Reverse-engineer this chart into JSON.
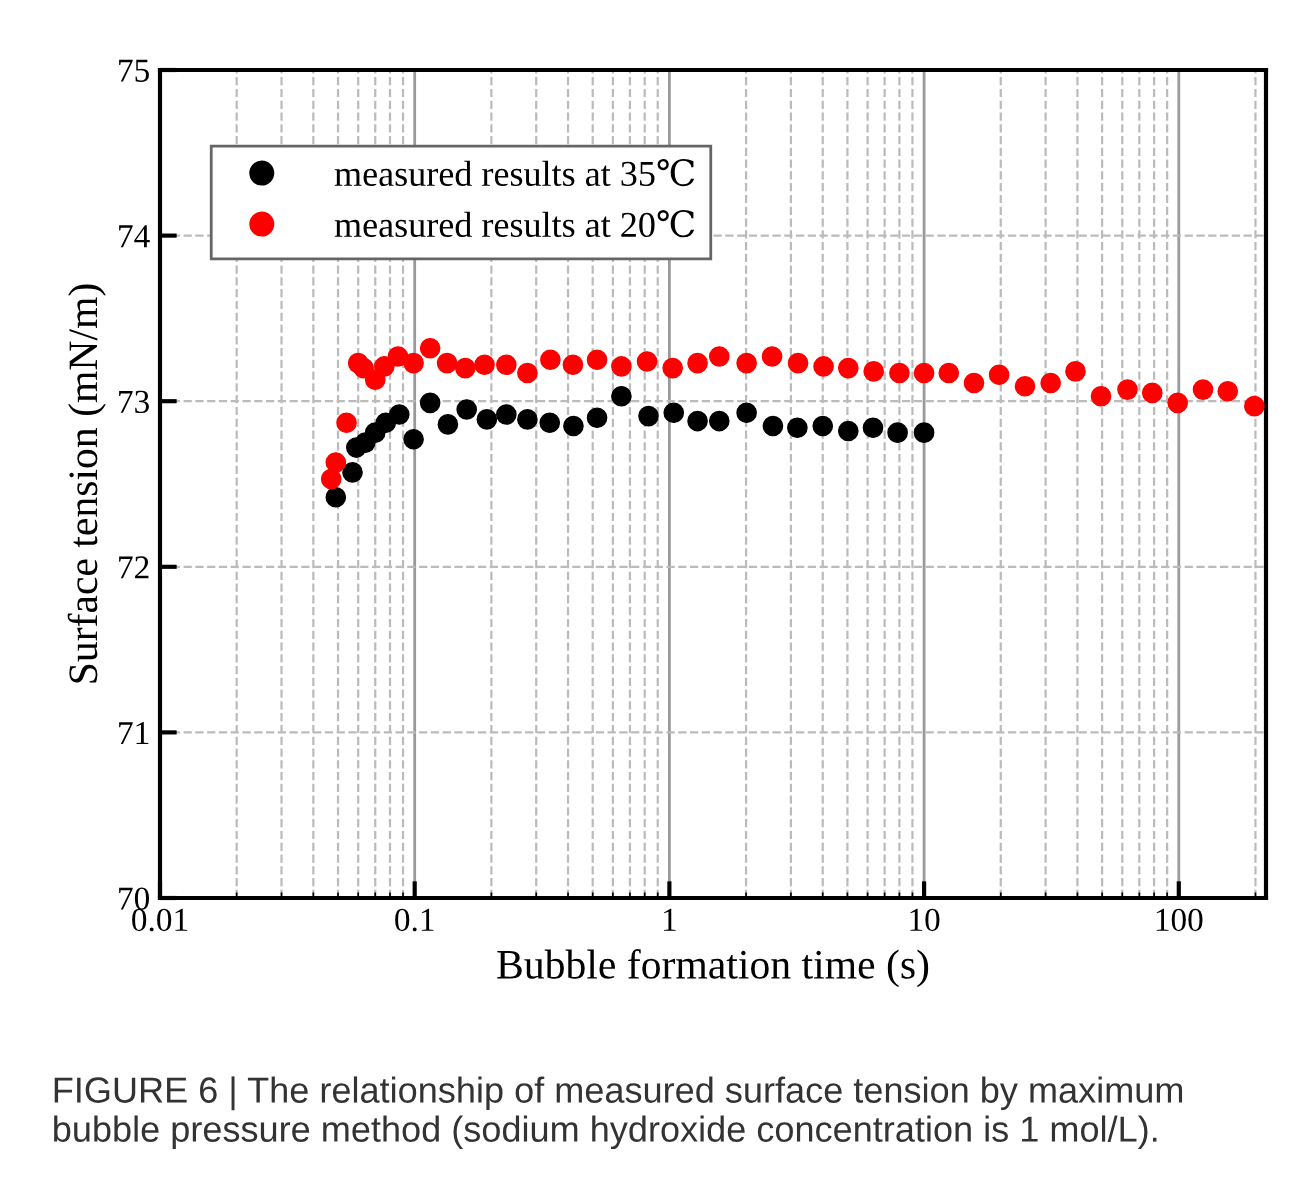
{
  "chart_data": {
    "type": "scatter",
    "xlabel": "Bubble formation time (s)",
    "ylabel": "Surface tension (mN/m)",
    "log": "x",
    "xlim": [
      0.01,
      220
    ],
    "xticks": [
      0.01,
      0.1,
      1,
      10,
      100
    ],
    "ylim": [
      70,
      75
    ],
    "yticks": [
      70,
      71,
      72,
      73,
      74,
      75
    ],
    "grid": true,
    "legend": "top left",
    "marker": "circle",
    "annotations": [
      "FIGURE 6 | The relationship of measured surface tension by maximum bubble pressure method (sodium hydroxide concentration is 1 mol/L)."
    ],
    "series": [
      {
        "name": "measured results at 35℃",
        "color": "#000000",
        "x": [
          0.049,
          0.057,
          0.059,
          0.064,
          0.07,
          0.077,
          0.087,
          0.099,
          0.115,
          0.135,
          0.16,
          0.192,
          0.229,
          0.277,
          0.339,
          0.42,
          0.52,
          0.648,
          0.828,
          1.04,
          1.29,
          1.57,
          2.01,
          2.55,
          3.18,
          4.0,
          5.04,
          6.3,
          7.87,
          10.0
        ],
        "values": [
          72.42,
          72.57,
          72.72,
          72.75,
          72.81,
          72.87,
          72.92,
          72.77,
          72.99,
          72.86,
          72.95,
          72.89,
          72.92,
          72.89,
          72.87,
          72.85,
          72.9,
          73.03,
          72.91,
          72.93,
          72.88,
          72.88,
          72.93,
          72.85,
          72.84,
          72.85,
          72.82,
          72.84,
          72.81,
          72.81
        ]
      },
      {
        "name": "measured results at 20℃",
        "color": "#ff0000",
        "x": [
          0.047,
          0.049,
          0.054,
          0.06,
          0.063,
          0.07,
          0.076,
          0.086,
          0.099,
          0.115,
          0.134,
          0.158,
          0.188,
          0.229,
          0.277,
          0.341,
          0.418,
          0.52,
          0.648,
          0.817,
          1.03,
          1.29,
          1.57,
          2.01,
          2.53,
          3.2,
          4.03,
          5.04,
          6.34,
          8.0,
          10.0,
          12.5,
          15.7,
          19.7,
          24.9,
          31.4,
          39.3,
          49.5,
          62.9,
          78.7,
          99,
          124.5,
          155.7,
          198
        ],
        "values": [
          72.53,
          72.63,
          72.87,
          73.23,
          73.2,
          73.13,
          73.21,
          73.27,
          73.23,
          73.32,
          73.23,
          73.2,
          73.22,
          73.22,
          73.17,
          73.25,
          73.22,
          73.25,
          73.21,
          73.24,
          73.2,
          73.23,
          73.27,
          73.23,
          73.27,
          73.23,
          73.21,
          73.2,
          73.18,
          73.17,
          73.17,
          73.17,
          73.11,
          73.16,
          73.09,
          73.11,
          73.18,
          73.03,
          73.07,
          73.05,
          72.99,
          73.07,
          73.06,
          72.97
        ]
      }
    ]
  }
}
